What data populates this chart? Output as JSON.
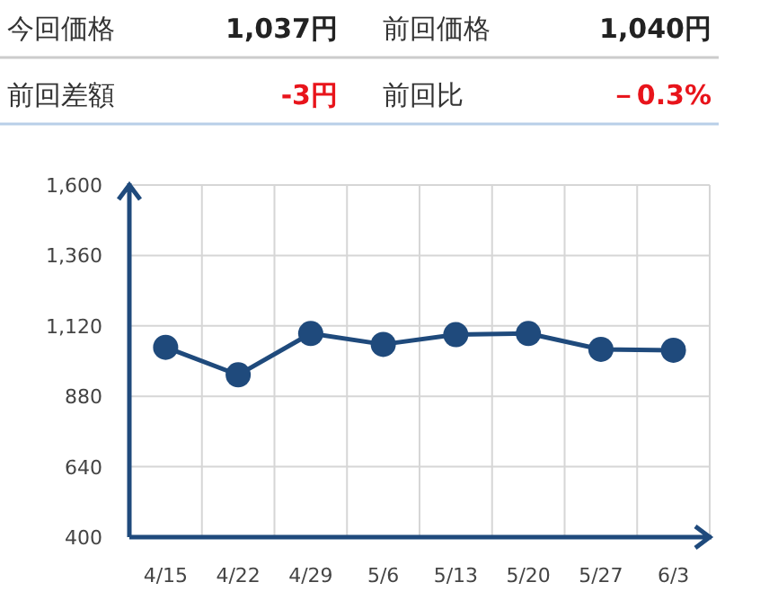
{
  "chart_data": [
    {
      "type": "other",
      "annotations": [
        "今回価格",
        "1,037円",
        "前回価格",
        "1,040円",
        "前回差額",
        "-3円",
        "前回比",
        "－0.3%"
      ]
    },
    {
      "type": "line",
      "categories": [
        "4/15",
        "4/22",
        "4/29",
        "5/6",
        "5/13",
        "5/20",
        "5/27",
        "6/3"
      ],
      "series": [
        {
          "color": "#1f4a7c",
          "values": [
            1047,
            953,
            1094,
            1057,
            1090,
            1094,
            1040,
            1037
          ]
        }
      ],
      "ylim": [
        400,
        1600
      ],
      "yticks": [
        400,
        640,
        880,
        {
          "value": 1120,
          "label": "1,120"
        },
        {
          "value": 1360,
          "label": "1,360"
        },
        {
          "value": 1600,
          "label": "1,600"
        }
      ],
      "grid": true,
      "marker": "circle",
      "line_style": "solid"
    }
  ]
}
